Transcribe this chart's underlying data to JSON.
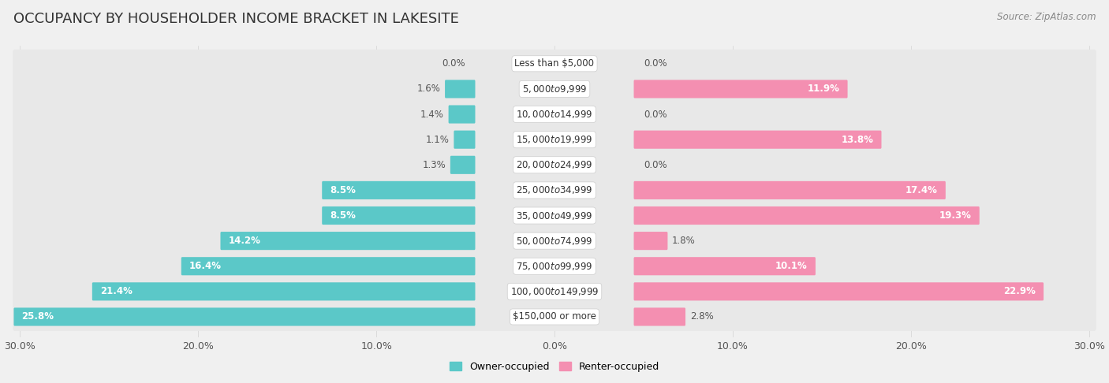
{
  "title": "OCCUPANCY BY HOUSEHOLDER INCOME BRACKET IN LAKESITE",
  "source": "Source: ZipAtlas.com",
  "categories": [
    "Less than $5,000",
    "$5,000 to $9,999",
    "$10,000 to $14,999",
    "$15,000 to $19,999",
    "$20,000 to $24,999",
    "$25,000 to $34,999",
    "$35,000 to $49,999",
    "$50,000 to $74,999",
    "$75,000 to $99,999",
    "$100,000 to $149,999",
    "$150,000 or more"
  ],
  "owner_values": [
    0.0,
    1.6,
    1.4,
    1.1,
    1.3,
    8.5,
    8.5,
    14.2,
    16.4,
    21.4,
    25.8
  ],
  "renter_values": [
    0.0,
    11.9,
    0.0,
    13.8,
    0.0,
    17.4,
    19.3,
    1.8,
    10.1,
    22.9,
    2.8
  ],
  "owner_color": "#5bc8c8",
  "renter_color": "#f48fb1",
  "background_color": "#f0f0f0",
  "bar_background": "#ffffff",
  "row_bg_color": "#e8e8e8",
  "axis_max": 30.0,
  "title_fontsize": 13,
  "label_fontsize": 8.5,
  "cat_fontsize": 8.5,
  "bar_height": 0.62,
  "legend_fontsize": 9
}
